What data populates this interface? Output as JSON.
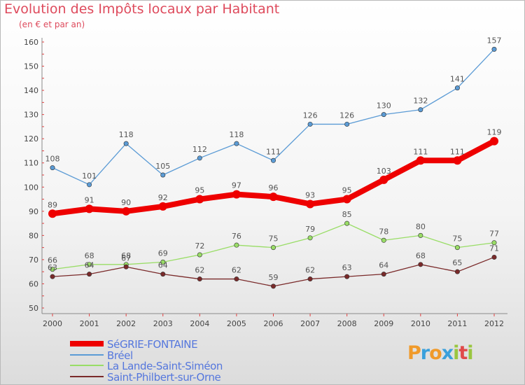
{
  "title": "Evolution des Impôts locaux par Habitant",
  "subtitle": "(en € et par an)",
  "logo": {
    "letters": [
      "P",
      "r",
      "o",
      "x",
      "i",
      "t",
      "i"
    ],
    "colors": [
      "#f09a2a",
      "#3aa0dc",
      "#f09a2a",
      "#3aa0dc",
      "#9ac640",
      "#e04a4a",
      "#9ac640"
    ]
  },
  "chart_data": {
    "type": "line",
    "x": [
      "2000",
      "2001",
      "2002",
      "2003",
      "2004",
      "2005",
      "2006",
      "2007",
      "2008",
      "2009",
      "2010",
      "2011",
      "2012"
    ],
    "ylim": [
      50,
      160
    ],
    "yticks": [
      50,
      60,
      70,
      80,
      90,
      100,
      110,
      120,
      130,
      140,
      150,
      160
    ],
    "grid": false,
    "legend_position": "bottom-left",
    "series": [
      {
        "name": "SéGRIE-FONTAINE",
        "color": "#ee0000",
        "emphasis": true,
        "values": [
          89,
          91,
          90,
          92,
          95,
          97,
          96,
          93,
          95,
          103,
          111,
          111,
          119
        ]
      },
      {
        "name": "Bréel",
        "color": "#5b9bd5",
        "emphasis": false,
        "values": [
          108,
          101,
          118,
          105,
          112,
          118,
          111,
          126,
          126,
          130,
          132,
          141,
          157
        ]
      },
      {
        "name": "La Lande-Saint-Siméon",
        "color": "#99dd66",
        "emphasis": false,
        "values": [
          66,
          68,
          68,
          69,
          72,
          76,
          75,
          79,
          85,
          78,
          80,
          75,
          77
        ]
      },
      {
        "name": "Saint-Philbert-sur-Orne",
        "color": "#7a2a2a",
        "emphasis": false,
        "values": [
          63,
          64,
          67,
          64,
          62,
          62,
          59,
          62,
          63,
          64,
          68,
          65,
          71
        ]
      }
    ]
  }
}
